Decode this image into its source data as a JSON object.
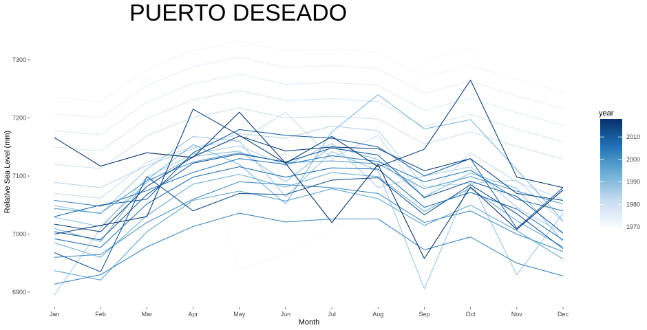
{
  "chart_data": {
    "type": "line",
    "title": "PUERTO DESEADO",
    "xlabel": "Month",
    "ylabel": "Relative Sea Level (mm)",
    "categories": [
      "Jan",
      "Feb",
      "Mar",
      "Apr",
      "May",
      "Jun",
      "Jul",
      "Aug",
      "Sep",
      "Oct",
      "Nov",
      "Dec"
    ],
    "ylim": [
      6885,
      7340
    ],
    "yticks": [
      6900,
      7000,
      7100,
      7200,
      7300
    ],
    "ytick_labels": [
      "6900",
      "7000",
      "7100",
      "7200",
      "7300"
    ],
    "grid": false,
    "legend": {
      "title": "year",
      "placement": "right",
      "range": [
        1970,
        2018
      ],
      "ticks": [
        1970,
        1980,
        1990,
        2000,
        2010
      ],
      "tick_labels": [
        "1970",
        "1980",
        "1990",
        "2000",
        "2010"
      ],
      "color_low": "#f7fbff",
      "color_high": "#08306b"
    },
    "series": [
      {
        "year": 1970,
        "values": [
          7170,
          7175,
          7270,
          7190,
          6940,
          6965,
          7010,
          7040,
          7300,
          7320,
          7200,
          7250
        ]
      },
      {
        "year": 1972,
        "values": [
          7236,
          7228,
          7284,
          7316,
          7332,
          7315,
          7318,
          7313,
          7270,
          7291,
          7266,
          7244
        ]
      },
      {
        "year": 1974,
        "values": [
          7207,
          7200,
          7256,
          7288,
          7304,
          7287,
          7290,
          7285,
          7242,
          7263,
          7238,
          7216
        ]
      },
      {
        "year": 1976,
        "values": [
          7178,
          7171,
          7227,
          7259,
          7275,
          7258,
          7261,
          7256,
          7213,
          7234,
          7209,
          7187
        ]
      },
      {
        "year": 1978,
        "values": [
          7150,
          7143,
          7199,
          7231,
          7247,
          7230,
          7233,
          7228,
          7185,
          7206,
          7181,
          7159
        ]
      },
      {
        "year": 1980,
        "values": [
          7120,
          7113,
          7169,
          7201,
          7217,
          7200,
          7203,
          7198,
          7155,
          7176,
          7151,
          7129
        ]
      },
      {
        "year": 1982,
        "values": [
          7070,
          7062,
          7124,
          7150,
          7160,
          7210,
          7130,
          7170,
          7060,
          7140,
          7090,
          7060
        ]
      },
      {
        "year": 1984,
        "values": [
          7089,
          7080,
          7118,
          7147,
          7173,
          7165,
          7186,
          7178,
          7082,
          7087,
          7093,
          7021
        ]
      },
      {
        "year": 1986,
        "values": [
          6895,
          7010,
          7098,
          7138,
          7152,
          7118,
          7156,
          7080,
          7100,
          7116,
          7046,
          7001
        ]
      },
      {
        "year": 1988,
        "values": [
          7049,
          7035,
          7112,
          7168,
          7160,
          7064,
          7142,
          7109,
          6906,
          7092,
          6930,
          7036
        ]
      },
      {
        "year": 1990,
        "values": [
          7029,
          7013,
          7089,
          7134,
          7143,
          7090,
          7152,
          7128,
          7064,
          7105,
          7079,
          6987
        ]
      },
      {
        "year": 1992,
        "values": [
          7010,
          6987,
          7093,
          7154,
          7120,
          7052,
          7176,
          7240,
          7181,
          7197,
          7111,
          7023
        ]
      },
      {
        "year": 1994,
        "values": [
          6985,
          6960,
          7032,
          7086,
          7103,
          7081,
          7106,
          7099,
          7039,
          7079,
          7023,
          6978
        ]
      },
      {
        "year": 1996,
        "values": [
          6937,
          6921,
          7004,
          7058,
          7074,
          7057,
          7078,
          7061,
          7015,
          7050,
          7006,
          6957
        ]
      },
      {
        "year": 1998,
        "values": [
          7044,
          7036,
          7092,
          7124,
          7140,
          7123,
          7126,
          7121,
          7078,
          7099,
          7074,
          7052
        ]
      },
      {
        "year": 2000,
        "values": [
          6960,
          6965,
          7020,
          7060,
          7090,
          7085,
          7080,
          7070,
          7020,
          7040,
          7000,
          6970
        ]
      },
      {
        "year": 2002,
        "values": [
          6914,
          6930,
          6978,
          7013,
          7036,
          7021,
          7026,
          7026,
          6973,
          6995,
          6950,
          6928
        ]
      },
      {
        "year": 2004,
        "values": [
          7058,
          7048,
          7075,
          7106,
          7130,
          7120,
          7135,
          7125,
          7090,
          7110,
          7060,
          7040
        ]
      },
      {
        "year": 2006,
        "values": [
          6992,
          6977,
          7052,
          7098,
          7116,
          7098,
          7114,
          7112,
          7046,
          7072,
          7043,
          6990
        ]
      },
      {
        "year": 2008,
        "values": [
          7030,
          7050,
          7060,
          7140,
          7180,
          7170,
          7165,
          7150,
          7100,
          7130,
          7010,
          7080
        ]
      },
      {
        "year": 2010,
        "values": [
          7004,
          6990,
          7068,
          7122,
          7138,
          7124,
          7148,
          7136,
          7063,
          7091,
          7065,
          7002
        ]
      },
      {
        "year": 2012,
        "values": [
          6968,
          6935,
          7099,
          7040,
          7070,
          7068,
          7093,
          7097,
          7033,
          7085,
          7035,
          6975
        ]
      },
      {
        "year": 2014,
        "values": [
          7017,
          7004,
          7082,
          7133,
          7169,
          7143,
          7150,
          7147,
          7109,
          7130,
          7070,
          7058
        ]
      },
      {
        "year": 2016,
        "values": [
          7000,
          7015,
          7030,
          7215,
          7170,
          7122,
          7168,
          7116,
          7146,
          7265,
          7098,
          7080
        ]
      },
      {
        "year": 2018,
        "values": [
          7166,
          7117,
          7140,
          7132,
          7210,
          7122,
          7020,
          7120,
          6958,
          7081,
          7008,
          7076
        ]
      }
    ]
  }
}
